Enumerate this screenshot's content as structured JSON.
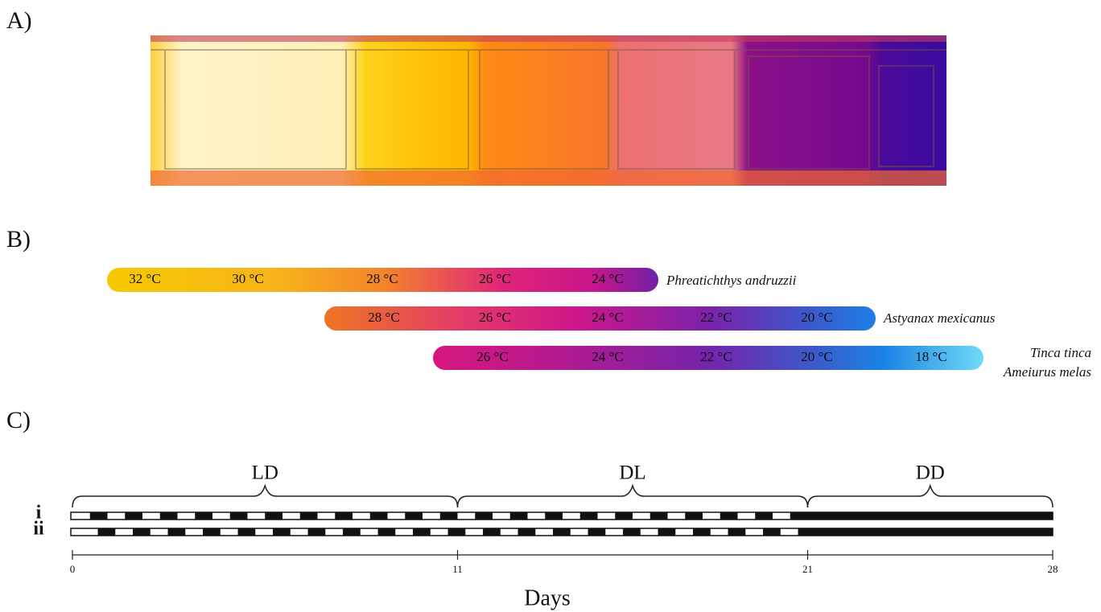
{
  "panels": {
    "a": {
      "label": "A)"
    },
    "b": {
      "label": "B)",
      "bars": [
        {
          "temperatures": [
            "32 °C",
            "30 °C",
            "28 °C",
            "26 °C",
            "24 °C"
          ],
          "species": [
            "Phreatichthys andruzzii"
          ]
        },
        {
          "temperatures": [
            "28 °C",
            "26 °C",
            "24 °C",
            "22 °C",
            "20 °C"
          ],
          "species": [
            "Astyanax mexicanus"
          ]
        },
        {
          "temperatures": [
            "26 °C",
            "24 °C",
            "22 °C",
            "20 °C",
            "18 °C"
          ],
          "species": [
            "Tinca tinca",
            "Ameiurus melas"
          ]
        }
      ]
    },
    "c": {
      "label": "C)",
      "phases": [
        "LD",
        "DL",
        "DD"
      ],
      "rows": [
        "i",
        "ii"
      ],
      "xticks": [
        0,
        11,
        21,
        28
      ],
      "xlabel": "Days"
    }
  }
}
